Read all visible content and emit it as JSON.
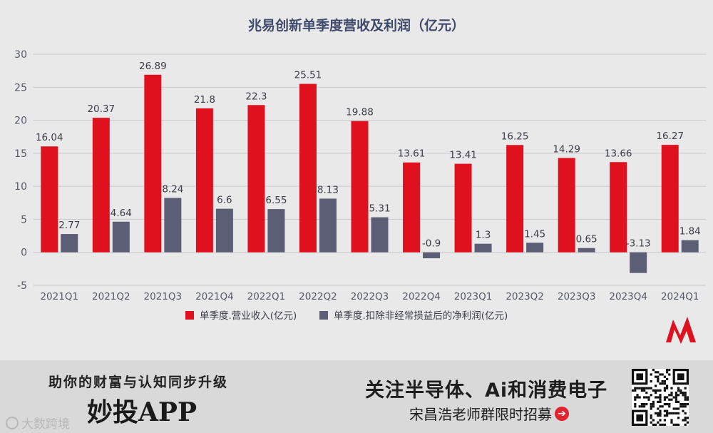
{
  "chart_data": {
    "type": "bar",
    "title": "兆易创新单季度营收及利润（亿元）",
    "categories": [
      "2021Q1",
      "2021Q2",
      "2021Q3",
      "2021Q4",
      "2022Q1",
      "2022Q2",
      "2022Q3",
      "2022Q4",
      "2023Q1",
      "2023Q2",
      "2023Q3",
      "2023Q4",
      "2024Q1"
    ],
    "series": [
      {
        "name": "单季度.营业收入(亿元)",
        "color": "#e0111f",
        "values": [
          16.04,
          20.37,
          26.89,
          21.8,
          22.3,
          25.51,
          19.88,
          13.61,
          13.41,
          16.25,
          14.29,
          13.66,
          16.27
        ],
        "labels": [
          "16.04",
          "20.37",
          "26.89",
          "21.8",
          "22.3",
          "25.51",
          "19.88",
          "13.61",
          "13.41",
          "16.25",
          "14.29",
          "13.66",
          "16.27"
        ]
      },
      {
        "name": "单季度.扣除非经常损益后的净利润(亿元)",
        "color": "#5b5e74",
        "values": [
          2.77,
          4.64,
          8.24,
          6.6,
          6.55,
          8.13,
          5.31,
          -0.9,
          1.3,
          1.45,
          0.65,
          -3.13,
          1.84
        ],
        "labels": [
          "2.77",
          "4.64",
          "8.24",
          "6.6",
          "6.55",
          "8.13",
          "5.31",
          "-0.9",
          "1.3",
          "1.45",
          "0.65",
          "-3.13",
          "1.84"
        ]
      }
    ],
    "yticks": [
      "30",
      "25",
      "20",
      "15",
      "10",
      "5",
      "0",
      "-5"
    ],
    "ylim": [
      -5,
      30
    ],
    "grid": true,
    "legend": "bottom"
  },
  "footer": {
    "slogan": "助你的财富与认知同步升级",
    "app_name": "妙投APP",
    "headline": "关注半导体、Ai和消费电子",
    "subline": "宋昌浩老师群限时招募",
    "arrow_icon": "arrow-right-circle-icon",
    "watermark": "大数跨境"
  }
}
